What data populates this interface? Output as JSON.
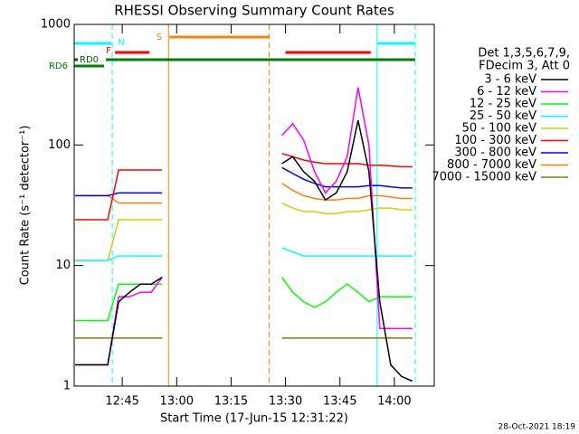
{
  "chart_data": {
    "type": "line",
    "title": "RHESSI Observing Summary Count Rates",
    "x_label": "Start Time (17-Jun-15 12:31:22)",
    "y_label": "Count Rate (s⁻¹ detector⁻¹)",
    "footer": "28-Oct-2021 18:19",
    "legend_header": [
      "Det 1,3,5,6,7,9,",
      "FDecim 3, Att 0"
    ],
    "log_y": true,
    "ylim": [
      1,
      1000
    ],
    "yticks": [
      1,
      10,
      100,
      1000
    ],
    "xlim": [
      "12:31:45",
      "14:11"
    ],
    "xticks": [
      "12:45",
      "13:00",
      "13:15",
      "13:30",
      "13:45",
      "14:00"
    ],
    "x": [
      "12:32",
      "12:35",
      "12:38",
      "12:41",
      "12:44",
      "12:47",
      "12:50",
      "12:53",
      "12:56",
      "12:59",
      "13:02",
      "13:05",
      "13:08",
      "13:11",
      "13:14",
      "13:17",
      "13:20",
      "13:23",
      "13:26",
      "13:29",
      "13:32",
      "13:35",
      "13:38",
      "13:41",
      "13:44",
      "13:47",
      "13:50",
      "13:53",
      "13:56",
      "13:59",
      "14:02",
      "14:05"
    ],
    "series": [
      {
        "name": "3 - 6 keV",
        "color": "#000000",
        "values": [
          1.5,
          1.5,
          1.5,
          1.5,
          5,
          6,
          7,
          7,
          8,
          null,
          null,
          null,
          null,
          null,
          null,
          null,
          null,
          null,
          null,
          70,
          80,
          60,
          50,
          35,
          40,
          60,
          160,
          60,
          5,
          1.5,
          1.2,
          1.1
        ]
      },
      {
        "name": "6 - 12 keV",
        "color": "#ff00ff",
        "values": [
          1.5,
          1.5,
          1.5,
          1.5,
          5.5,
          5.5,
          6,
          6,
          8,
          null,
          null,
          null,
          null,
          null,
          null,
          null,
          null,
          null,
          null,
          120,
          150,
          110,
          60,
          40,
          50,
          80,
          300,
          100,
          3,
          3,
          3,
          3
        ]
      },
      {
        "name": "12 - 25 keV",
        "color": "#00ff00",
        "values": [
          3.5,
          3.5,
          3.5,
          3.5,
          7,
          7,
          7,
          7,
          7,
          null,
          null,
          null,
          null,
          null,
          null,
          null,
          null,
          null,
          null,
          8,
          6,
          5,
          4.5,
          5,
          6,
          7,
          6,
          5,
          5.5,
          5.5,
          5.5,
          5.5
        ]
      },
      {
        "name": "25 - 50 keV",
        "color": "#00ffff",
        "values": [
          11,
          11,
          11,
          11,
          12,
          12,
          12,
          12,
          12,
          null,
          null,
          null,
          null,
          null,
          null,
          null,
          null,
          null,
          null,
          14,
          13,
          12,
          12,
          12,
          12,
          12,
          12,
          12,
          12,
          12,
          12,
          12
        ]
      },
      {
        "name": "50 - 100 keV",
        "color": "#d0d000",
        "values": [
          11,
          11,
          11,
          11,
          24,
          24,
          24,
          24,
          24,
          null,
          null,
          null,
          null,
          null,
          null,
          null,
          null,
          null,
          null,
          33,
          30,
          28,
          28,
          27,
          27,
          28,
          28,
          29,
          30,
          30,
          29,
          29
        ]
      },
      {
        "name": "100 - 300 keV",
        "color": "#ff0000",
        "values": [
          24,
          24,
          24,
          24,
          62,
          62,
          62,
          62,
          62,
          null,
          null,
          null,
          null,
          null,
          null,
          null,
          null,
          null,
          null,
          85,
          80,
          75,
          72,
          70,
          70,
          70,
          70,
          68,
          68,
          67,
          66,
          66
        ]
      },
      {
        "name": "300 - 800 keV",
        "color": "#0000ff",
        "values": [
          38,
          38,
          38,
          38,
          40,
          40,
          40,
          40,
          40,
          null,
          null,
          null,
          null,
          null,
          null,
          null,
          null,
          null,
          null,
          65,
          58,
          52,
          48,
          45,
          45,
          45,
          45,
          46,
          46,
          45,
          44,
          44
        ]
      },
      {
        "name": "800 - 7000 keV",
        "color": "#ff8000",
        "values": [
          38,
          38,
          38,
          38,
          33,
          33,
          33,
          33,
          33,
          null,
          null,
          null,
          null,
          null,
          null,
          null,
          null,
          null,
          null,
          48,
          42,
          38,
          36,
          35,
          35,
          36,
          36,
          38,
          38,
          37,
          36,
          36
        ]
      },
      {
        "name": "7000 - 15000 keV",
        "color": "#808000",
        "values": [
          2.5,
          2.5,
          2.5,
          2.5,
          2.5,
          2.5,
          2.5,
          2.5,
          2.5,
          null,
          null,
          null,
          null,
          null,
          null,
          null,
          null,
          null,
          null,
          2.5,
          2.5,
          2.5,
          2.5,
          2.5,
          2.5,
          2.5,
          2.5,
          2.5,
          2.5,
          2.5,
          2.5,
          2.5
        ]
      }
    ],
    "vlines": [
      {
        "x": "12:31:45",
        "color": "#00ffff",
        "dashed": false
      },
      {
        "x": "12:42:15",
        "color": "#00ffff",
        "dashed": true
      },
      {
        "x": "12:57:45",
        "color": "#ff8000",
        "dashed": false
      },
      {
        "x": "13:25:30",
        "color": "#ff8000",
        "dashed": true
      },
      {
        "x": "13:55:15",
        "color": "#00ffff",
        "dashed": false
      },
      {
        "x": "14:05:45",
        "color": "#00ffff",
        "dashed": true
      }
    ],
    "flags": [
      {
        "label": "N",
        "color": "#00ffff",
        "start": "12:31:45",
        "end": "12:42:00"
      },
      {
        "label": "F",
        "color": "#ff0000",
        "start": "12:43:00",
        "end": "12:52:30"
      },
      {
        "label": "S",
        "color": "#ff8000",
        "start": "12:58:00",
        "end": "13:25:30"
      },
      {
        "label": "RD0",
        "color": "#006000",
        "start": "12:31:45",
        "end": "12:32:45"
      },
      {
        "label": "RD6",
        "color": "#008000",
        "start": "12:31:45",
        "end": "12:40:00"
      }
    ],
    "extra_bars": [
      {
        "color": "#00ffff",
        "start": "13:55:15",
        "end": "14:05:45"
      },
      {
        "color": "#ff0000",
        "start": "13:30:00",
        "end": "13:53:30"
      },
      {
        "color": "#008000",
        "start": "12:40:30",
        "end": "14:05:45"
      }
    ]
  }
}
